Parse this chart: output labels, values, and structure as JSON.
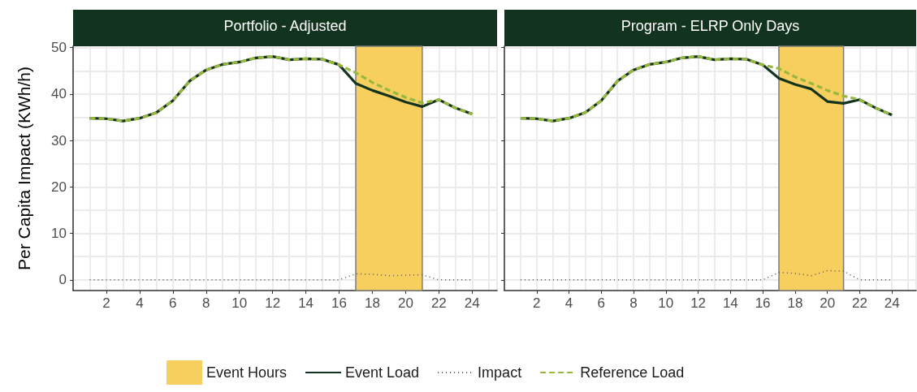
{
  "chart_data": [
    {
      "type": "line",
      "title": "Portfolio - Adjusted",
      "ylabel": "Per Capita Impact (KWh/h)",
      "x": [
        1,
        2,
        3,
        4,
        5,
        6,
        7,
        8,
        9,
        10,
        11,
        12,
        13,
        14,
        15,
        16,
        17,
        18,
        19,
        20,
        21,
        22,
        23,
        24
      ],
      "xlim": [
        0,
        25.5
      ],
      "xticks": [
        2,
        4,
        6,
        8,
        10,
        12,
        14,
        16,
        18,
        20,
        22,
        24
      ],
      "ylim": [
        -2.3,
        50.3
      ],
      "yticks": [
        0,
        10,
        20,
        30,
        40,
        50
      ],
      "grid": true,
      "legend": "bottom",
      "marker": "none",
      "bands": [
        {
          "axis": "x",
          "from": 17,
          "to": 21,
          "label": "Event Hours",
          "color": "#f6cf5e"
        }
      ],
      "series": [
        {
          "name": "Event Load",
          "color": "#12331e",
          "line_style": "solid",
          "values": [
            34.8,
            34.7,
            34.2,
            34.8,
            36.0,
            38.6,
            42.8,
            45.2,
            46.4,
            46.9,
            47.8,
            48.1,
            47.4,
            47.6,
            47.5,
            46.3,
            42.3,
            40.8,
            39.6,
            38.3,
            37.3,
            38.8,
            37.0,
            35.7
          ]
        },
        {
          "name": "Impact",
          "color": "#555555",
          "line_style": "dotted",
          "values": [
            0,
            0,
            0,
            0,
            0,
            0,
            0,
            0,
            0,
            0,
            0,
            0,
            0,
            0,
            0,
            0,
            1.3,
            1.2,
            0.9,
            1.0,
            1.1,
            0,
            0,
            0
          ]
        },
        {
          "name": "Reference Load",
          "color": "#97b83d",
          "line_style": "dashed",
          "values": [
            34.8,
            34.7,
            34.2,
            34.8,
            36.0,
            38.6,
            42.8,
            45.2,
            46.4,
            46.9,
            47.8,
            48.1,
            47.4,
            47.6,
            47.5,
            46.3,
            44.6,
            42.5,
            40.8,
            39.3,
            38.1,
            38.8,
            37.0,
            35.7
          ]
        }
      ]
    },
    {
      "type": "line",
      "title": "Program - ELRP Only Days",
      "x": [
        1,
        2,
        3,
        4,
        5,
        6,
        7,
        8,
        9,
        10,
        11,
        12,
        13,
        14,
        15,
        16,
        17,
        18,
        19,
        20,
        21,
        22,
        23,
        24
      ],
      "xlim": [
        0,
        25.5
      ],
      "xticks": [
        2,
        4,
        6,
        8,
        10,
        12,
        14,
        16,
        18,
        20,
        22,
        24
      ],
      "ylim": [
        -2.3,
        50.3
      ],
      "yticks": [
        0,
        10,
        20,
        30,
        40,
        50
      ],
      "grid": true,
      "marker": "none",
      "tick_labels": "x",
      "bands": [
        {
          "axis": "x",
          "from": 17,
          "to": 21,
          "color": "#f6cf5e"
        }
      ],
      "series": [
        {
          "color": "#12331e",
          "line_style": "solid",
          "values": [
            34.8,
            34.7,
            34.2,
            34.8,
            36.0,
            38.6,
            42.8,
            45.2,
            46.4,
            46.9,
            47.8,
            48.1,
            47.4,
            47.6,
            47.5,
            46.3,
            43.4,
            42.1,
            41.1,
            38.4,
            38.0,
            38.8,
            37.0,
            35.5
          ]
        },
        {
          "color": "#555555",
          "line_style": "dotted",
          "values": [
            0,
            0,
            0,
            0,
            0,
            0,
            0,
            0,
            0,
            0,
            0,
            0,
            0,
            0,
            0,
            0,
            1.6,
            1.4,
            0.9,
            2.0,
            1.9,
            0,
            0,
            0
          ]
        },
        {
          "color": "#97b83d",
          "line_style": "dashed",
          "values": [
            34.8,
            34.7,
            34.2,
            34.8,
            36.0,
            38.6,
            42.8,
            45.2,
            46.4,
            46.9,
            47.8,
            48.1,
            47.4,
            47.6,
            47.5,
            46.3,
            45.5,
            43.7,
            42.3,
            40.8,
            39.6,
            38.8,
            37.0,
            35.5
          ]
        }
      ]
    }
  ]
}
